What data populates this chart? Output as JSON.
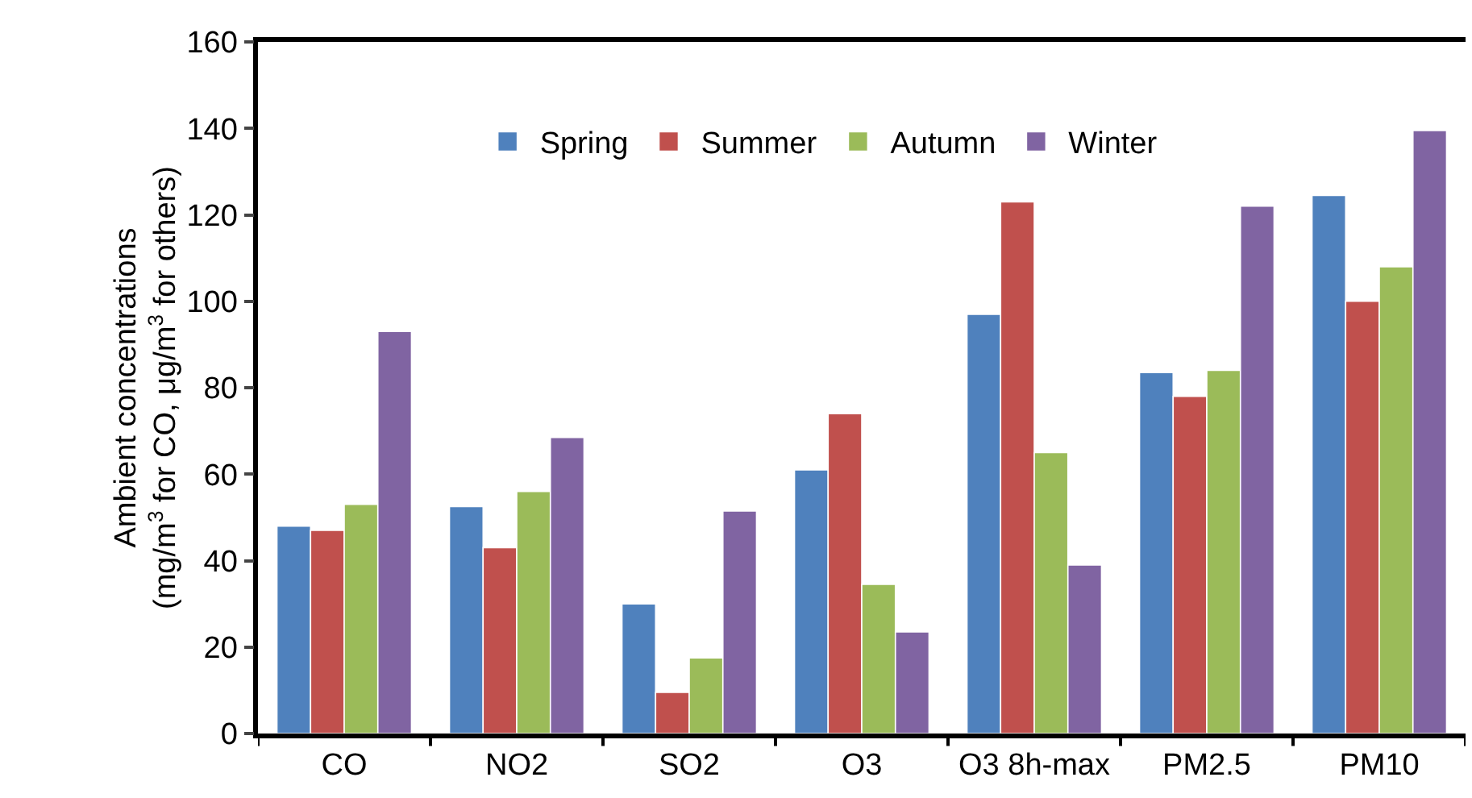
{
  "chart_data": {
    "type": "bar",
    "ylabel": "Ambient concentrations\n(mg/m$^{3}$ for CO, μg/m$^{3}$ for others)",
    "categories": [
      "CO",
      "NO2",
      "SO2",
      "O3",
      "O3 8h-max",
      "PM2.5",
      "PM10"
    ],
    "series": [
      {
        "name": "Spring",
        "color": "#4f81bd",
        "values": [
          48,
          52.5,
          30,
          61,
          97,
          83.5,
          124.5
        ]
      },
      {
        "name": "Summer",
        "color": "#c0504d",
        "values": [
          47,
          43,
          9.5,
          74,
          123,
          78,
          100
        ]
      },
      {
        "name": "Autumn",
        "color": "#9bbb59",
        "values": [
          53,
          56,
          17.5,
          34.5,
          65,
          84,
          108
        ]
      },
      {
        "name": "Winter",
        "color": "#8064a2",
        "values": [
          93,
          68.5,
          51.5,
          23.5,
          39,
          122,
          139.5
        ]
      }
    ],
    "ylim": [
      0,
      160
    ],
    "yticks": [
      0,
      20,
      40,
      60,
      80,
      100,
      120,
      140,
      160
    ],
    "grid": false,
    "legend": "top"
  }
}
